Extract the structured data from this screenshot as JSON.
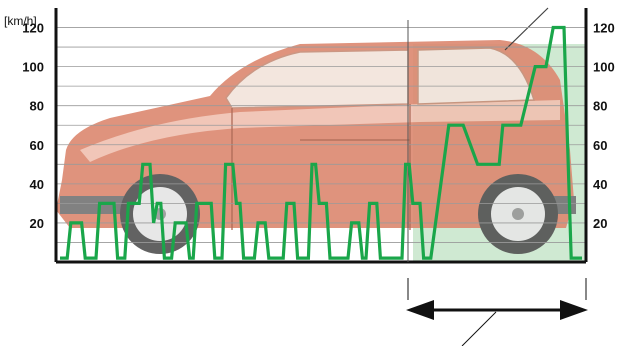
{
  "unit_label": "[km/h]",
  "colors": {
    "speed_line": "#1aa64a",
    "highway_zone": "#cfe9d2",
    "car_body": "#dd8a72",
    "car_body_light": "#f0c2b2",
    "axis": "#111111",
    "grid": "#9a9a9a"
  },
  "chart_data": {
    "type": "line",
    "ylim": [
      0,
      130
    ],
    "y_ticks": [
      "120",
      "100",
      "80",
      "60",
      "40",
      "20"
    ],
    "y_tick_values": [
      120,
      100,
      80,
      60,
      40,
      20
    ],
    "series": [
      {
        "points": [
          [
            0,
            2
          ],
          [
            2,
            2
          ],
          [
            3,
            20
          ],
          [
            6,
            20
          ],
          [
            7,
            2
          ],
          [
            10,
            2
          ],
          [
            11,
            30
          ],
          [
            15,
            30
          ],
          [
            16,
            2
          ],
          [
            18,
            2
          ],
          [
            19,
            30
          ],
          [
            22,
            30
          ],
          [
            23,
            50
          ],
          [
            25,
            50
          ],
          [
            26,
            20
          ],
          [
            27,
            30
          ],
          [
            28,
            30
          ],
          [
            29,
            2
          ],
          [
            31,
            2
          ],
          [
            32,
            20
          ],
          [
            35,
            20
          ],
          [
            36,
            2
          ],
          [
            37,
            2
          ],
          [
            38,
            30
          ],
          [
            42,
            30
          ],
          [
            43,
            2
          ],
          [
            45,
            2
          ],
          [
            46,
            50
          ],
          [
            48,
            50
          ],
          [
            49,
            30
          ],
          [
            50,
            30
          ],
          [
            51,
            2
          ],
          [
            54,
            2
          ],
          [
            55,
            20
          ],
          [
            57,
            20
          ],
          [
            58,
            2
          ],
          [
            62,
            2
          ],
          [
            63,
            30
          ],
          [
            65,
            30
          ],
          [
            66,
            2
          ],
          [
            69,
            2
          ],
          [
            70,
            50
          ],
          [
            71,
            50
          ],
          [
            72,
            30
          ],
          [
            74,
            30
          ],
          [
            75,
            2
          ],
          [
            80,
            2
          ],
          [
            81,
            20
          ],
          [
            83,
            20
          ],
          [
            84,
            2
          ],
          [
            85,
            2
          ],
          [
            86,
            30
          ],
          [
            88,
            30
          ],
          [
            89,
            2
          ],
          [
            95,
            2
          ],
          [
            96,
            50
          ],
          [
            97,
            50
          ],
          [
            98,
            30
          ],
          [
            100,
            30
          ],
          [
            101,
            2
          ],
          [
            103,
            2
          ],
          [
            108,
            70
          ],
          [
            112,
            70
          ],
          [
            116,
            50
          ],
          [
            122,
            50
          ],
          [
            123,
            70
          ],
          [
            128,
            70
          ],
          [
            132,
            100
          ],
          [
            135,
            100
          ],
          [
            137,
            120
          ],
          [
            140,
            120
          ],
          [
            141,
            60
          ],
          [
            142,
            2
          ],
          [
            145,
            2
          ]
        ]
      }
    ]
  }
}
